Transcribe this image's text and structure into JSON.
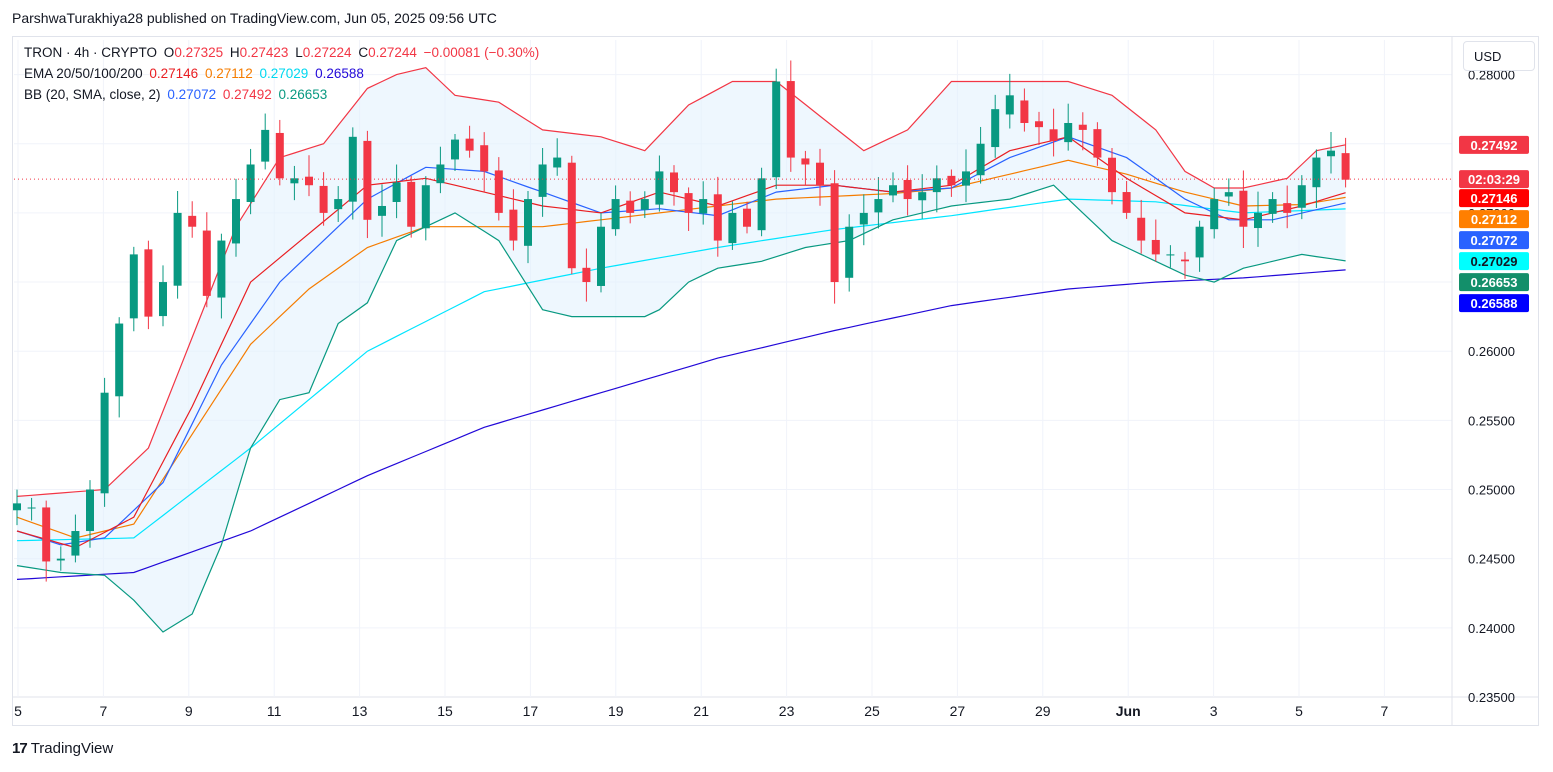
{
  "header": {
    "publisher_line": "ParshwaTurakhiya28 published on TradingView.com, Jun 05, 2025 09:56 UTC",
    "currency": "USD",
    "brand": "TradingView",
    "brand_logo": "17"
  },
  "legend": {
    "symbol": "TRON · 4h · CRYPTO",
    "o_label": "O",
    "o": "0.27325",
    "h_label": "H",
    "h": "0.27423",
    "l_label": "L",
    "l": "0.27224",
    "c_label": "C",
    "c": "0.27244",
    "change": "−0.00081 (−0.30%)",
    "ema_label": "EMA 20/50/100/200",
    "ema20": "0.27146",
    "ema50": "0.27112",
    "ema100": "0.27029",
    "ema200": "0.26588",
    "bb_label": "BB (20, SMA, close, 2)",
    "bb_mid": "0.27072",
    "bb_upper": "0.27492",
    "bb_lower": "0.26653"
  },
  "colors": {
    "up": "#089981",
    "down": "#f23645",
    "ema20": "#e91e22",
    "ema50": "#f57c00",
    "ema100": "#00e5ff",
    "ema200": "#2208d8",
    "bb_mid": "#2962ff",
    "bb_upper": "#f23645",
    "bb_lower": "#089981",
    "bb_fill": "#e3f2fd",
    "grid": "#f0f3fa"
  },
  "chart_data": {
    "type": "candlestick",
    "title": "TRON · 4h · CRYPTO",
    "ylim": [
      0.235,
      0.2825
    ],
    "yticks": [
      "0.28000",
      "0.27500",
      "0.27000",
      "0.26500",
      "0.26000",
      "0.25500",
      "0.25000",
      "0.24500",
      "0.24000",
      "0.23500"
    ],
    "xticks": [
      "5",
      "7",
      "9",
      "11",
      "13",
      "15",
      "17",
      "19",
      "21",
      "23",
      "25",
      "27",
      "29",
      "Jun",
      "3",
      "5",
      "7"
    ],
    "x_days": [
      0,
      2,
      4,
      6,
      8,
      10,
      12,
      14,
      16,
      18,
      20,
      22,
      24,
      26,
      28,
      30,
      32
    ],
    "last_price_label": "02:03:29",
    "last_price": 0.27244,
    "price_labels": [
      {
        "text": "0.27492",
        "value": 0.27492,
        "key": "bb_upper"
      },
      {
        "text": "0.27146",
        "value": 0.27146,
        "key": "ema20"
      },
      {
        "text": "0.27112",
        "value": 0.27112,
        "key": "ema50"
      },
      {
        "text": "0.27072",
        "value": 0.27072,
        "key": "bb_mid"
      },
      {
        "text": "0.27029",
        "value": 0.27029,
        "key": "ema100"
      },
      {
        "text": "0.26653",
        "value": 0.26653,
        "key": "bb_lower"
      },
      {
        "text": "0.26588",
        "value": 0.26588,
        "key": "ema200"
      }
    ],
    "anchors": {
      "close": [
        [
          0,
          0.249
        ],
        [
          1,
          0.2487
        ],
        [
          2,
          0.2448
        ],
        [
          3,
          0.245
        ],
        [
          4,
          0.247
        ],
        [
          5,
          0.25
        ],
        [
          6,
          0.257
        ],
        [
          7,
          0.262
        ],
        [
          8,
          0.267
        ],
        [
          9,
          0.2625
        ],
        [
          10,
          0.265
        ],
        [
          11,
          0.27
        ],
        [
          12,
          0.269
        ],
        [
          13,
          0.264
        ],
        [
          14,
          0.268
        ],
        [
          15,
          0.271
        ],
        [
          16,
          0.2735
        ],
        [
          17,
          0.276
        ],
        [
          18,
          0.2725
        ],
        [
          19,
          0.2725
        ],
        [
          20,
          0.272
        ],
        [
          21,
          0.27
        ],
        [
          22,
          0.271
        ],
        [
          23,
          0.2755
        ],
        [
          24,
          0.2695
        ],
        [
          25,
          0.2705
        ],
        [
          26,
          0.2722
        ],
        [
          27,
          0.269
        ],
        [
          28,
          0.272
        ],
        [
          29,
          0.2735
        ],
        [
          30,
          0.2753
        ],
        [
          31,
          0.2745
        ],
        [
          32,
          0.273
        ],
        [
          33,
          0.27
        ],
        [
          34,
          0.268
        ],
        [
          35,
          0.271
        ],
        [
          36,
          0.2735
        ],
        [
          37,
          0.274
        ],
        [
          38,
          0.266
        ],
        [
          39,
          0.265
        ],
        [
          40,
          0.269
        ],
        [
          41,
          0.271
        ],
        [
          42,
          0.27
        ],
        [
          43,
          0.271
        ],
        [
          44,
          0.273
        ],
        [
          45,
          0.2715
        ],
        [
          46,
          0.27
        ],
        [
          47,
          0.271
        ],
        [
          48,
          0.268
        ],
        [
          49,
          0.27
        ],
        [
          50,
          0.269
        ],
        [
          51,
          0.2725
        ],
        [
          52,
          0.2795
        ],
        [
          53,
          0.274
        ],
        [
          54,
          0.2735
        ],
        [
          55,
          0.272
        ],
        [
          56,
          0.265
        ],
        [
          57,
          0.269
        ],
        [
          58,
          0.27
        ],
        [
          59,
          0.271
        ],
        [
          60,
          0.272
        ],
        [
          61,
          0.271
        ],
        [
          62,
          0.2715
        ],
        [
          63,
          0.2725
        ],
        [
          64,
          0.272
        ],
        [
          65,
          0.273
        ],
        [
          66,
          0.275
        ],
        [
          67,
          0.2775
        ],
        [
          68,
          0.2785
        ],
        [
          69,
          0.2765
        ],
        [
          70,
          0.2762
        ],
        [
          71,
          0.2752
        ],
        [
          72,
          0.2765
        ],
        [
          73,
          0.276
        ],
        [
          74,
          0.274
        ],
        [
          75,
          0.2715
        ],
        [
          76,
          0.27
        ],
        [
          77,
          0.268
        ],
        [
          78,
          0.267
        ],
        [
          79,
          0.267
        ],
        [
          80,
          0.2665
        ],
        [
          81,
          0.269
        ],
        [
          82,
          0.271
        ],
        [
          83,
          0.2715
        ],
        [
          84,
          0.269
        ],
        [
          85,
          0.27
        ],
        [
          86,
          0.271
        ],
        [
          87,
          0.27
        ],
        [
          88,
          0.272
        ],
        [
          89,
          0.274
        ],
        [
          90,
          0.2745
        ],
        [
          91,
          0.2724
        ]
      ],
      "ema20": [
        [
          0,
          0.247
        ],
        [
          4,
          0.2458
        ],
        [
          8,
          0.248
        ],
        [
          12,
          0.256
        ],
        [
          16,
          0.265
        ],
        [
          20,
          0.2685
        ],
        [
          24,
          0.272
        ],
        [
          28,
          0.2725
        ],
        [
          32,
          0.2715
        ],
        [
          36,
          0.2705
        ],
        [
          40,
          0.27
        ],
        [
          44,
          0.2715
        ],
        [
          48,
          0.2705
        ],
        [
          52,
          0.272
        ],
        [
          56,
          0.272
        ],
        [
          60,
          0.2715
        ],
        [
          64,
          0.272
        ],
        [
          68,
          0.2745
        ],
        [
          72,
          0.2755
        ],
        [
          76,
          0.2725
        ],
        [
          80,
          0.27
        ],
        [
          84,
          0.2695
        ],
        [
          88,
          0.2705
        ],
        [
          91,
          0.27146
        ]
      ],
      "ema50": [
        [
          0,
          0.248
        ],
        [
          4,
          0.2465
        ],
        [
          8,
          0.2475
        ],
        [
          12,
          0.254
        ],
        [
          16,
          0.2605
        ],
        [
          20,
          0.2645
        ],
        [
          24,
          0.2675
        ],
        [
          28,
          0.269
        ],
        [
          32,
          0.269
        ],
        [
          36,
          0.269
        ],
        [
          40,
          0.2695
        ],
        [
          44,
          0.27
        ],
        [
          48,
          0.2705
        ],
        [
          52,
          0.271
        ],
        [
          56,
          0.2712
        ],
        [
          60,
          0.2714
        ],
        [
          64,
          0.2718
        ],
        [
          68,
          0.2728
        ],
        [
          72,
          0.2738
        ],
        [
          76,
          0.2728
        ],
        [
          80,
          0.2715
        ],
        [
          84,
          0.2705
        ],
        [
          88,
          0.2706
        ],
        [
          91,
          0.27112
        ]
      ],
      "ema100": [
        [
          0,
          0.2463
        ],
        [
          8,
          0.2465
        ],
        [
          16,
          0.253
        ],
        [
          24,
          0.26
        ],
        [
          32,
          0.2643
        ],
        [
          40,
          0.266
        ],
        [
          48,
          0.2675
        ],
        [
          56,
          0.2688
        ],
        [
          64,
          0.2698
        ],
        [
          72,
          0.271
        ],
        [
          78,
          0.2708
        ],
        [
          84,
          0.27
        ],
        [
          91,
          0.27029
        ]
      ],
      "ema200": [
        [
          0,
          0.2435
        ],
        [
          8,
          0.244
        ],
        [
          16,
          0.247
        ],
        [
          24,
          0.251
        ],
        [
          32,
          0.2545
        ],
        [
          40,
          0.257
        ],
        [
          48,
          0.2595
        ],
        [
          56,
          0.2615
        ],
        [
          64,
          0.2633
        ],
        [
          72,
          0.2645
        ],
        [
          78,
          0.265
        ],
        [
          84,
          0.2653
        ],
        [
          91,
          0.26588
        ]
      ],
      "bb_mid": [
        [
          0,
          0.247
        ],
        [
          3,
          0.246
        ],
        [
          6,
          0.2465
        ],
        [
          10,
          0.2505
        ],
        [
          14,
          0.259
        ],
        [
          18,
          0.265
        ],
        [
          21,
          0.268
        ],
        [
          24,
          0.271
        ],
        [
          28,
          0.2733
        ],
        [
          32,
          0.273
        ],
        [
          36,
          0.2715
        ],
        [
          40,
          0.27
        ],
        [
          44,
          0.2703
        ],
        [
          48,
          0.2698
        ],
        [
          52,
          0.2715
        ],
        [
          56,
          0.272
        ],
        [
          60,
          0.2715
        ],
        [
          64,
          0.2718
        ],
        [
          68,
          0.274
        ],
        [
          72,
          0.2755
        ],
        [
          76,
          0.274
        ],
        [
          80,
          0.271
        ],
        [
          83,
          0.2695
        ],
        [
          86,
          0.2695
        ],
        [
          91,
          0.27072
        ]
      ],
      "bb_upper": [
        [
          0,
          0.2495
        ],
        [
          6,
          0.25
        ],
        [
          9,
          0.253
        ],
        [
          12,
          0.261
        ],
        [
          15,
          0.269
        ],
        [
          18,
          0.274
        ],
        [
          21,
          0.275
        ],
        [
          24,
          0.279
        ],
        [
          26,
          0.28
        ],
        [
          28,
          0.2805
        ],
        [
          30,
          0.2785
        ],
        [
          33,
          0.278
        ],
        [
          36,
          0.276
        ],
        [
          40,
          0.2755
        ],
        [
          43,
          0.2745
        ],
        [
          46,
          0.2778
        ],
        [
          49,
          0.2795
        ],
        [
          52,
          0.2795
        ],
        [
          55,
          0.277
        ],
        [
          58,
          0.2745
        ],
        [
          61,
          0.276
        ],
        [
          64,
          0.2795
        ],
        [
          68,
          0.2795
        ],
        [
          72,
          0.2795
        ],
        [
          75,
          0.2785
        ],
        [
          78,
          0.276
        ],
        [
          80,
          0.273
        ],
        [
          82,
          0.2718
        ],
        [
          84,
          0.2718
        ],
        [
          87,
          0.2725
        ],
        [
          89,
          0.2745
        ],
        [
          91,
          0.27492
        ]
      ],
      "bb_lower": [
        [
          0,
          0.2445
        ],
        [
          3,
          0.244
        ],
        [
          6,
          0.2438
        ],
        [
          8,
          0.242
        ],
        [
          10,
          0.2397
        ],
        [
          12,
          0.241
        ],
        [
          14,
          0.246
        ],
        [
          16,
          0.253
        ],
        [
          18,
          0.2565
        ],
        [
          20,
          0.257
        ],
        [
          22,
          0.262
        ],
        [
          24,
          0.2635
        ],
        [
          26,
          0.268
        ],
        [
          28,
          0.269
        ],
        [
          30,
          0.27
        ],
        [
          33,
          0.268
        ],
        [
          36,
          0.263
        ],
        [
          38,
          0.2625
        ],
        [
          40,
          0.2625
        ],
        [
          43,
          0.2625
        ],
        [
          44,
          0.263
        ],
        [
          46,
          0.265
        ],
        [
          48,
          0.266
        ],
        [
          51,
          0.2665
        ],
        [
          54,
          0.2675
        ],
        [
          57,
          0.268
        ],
        [
          60,
          0.2695
        ],
        [
          64,
          0.2705
        ],
        [
          68,
          0.271
        ],
        [
          71,
          0.272
        ],
        [
          73,
          0.27
        ],
        [
          75,
          0.268
        ],
        [
          78,
          0.2665
        ],
        [
          80,
          0.2655
        ],
        [
          82,
          0.265
        ],
        [
          84,
          0.266
        ],
        [
          86,
          0.2665
        ],
        [
          88,
          0.267
        ],
        [
          91,
          0.26653
        ]
      ]
    }
  }
}
